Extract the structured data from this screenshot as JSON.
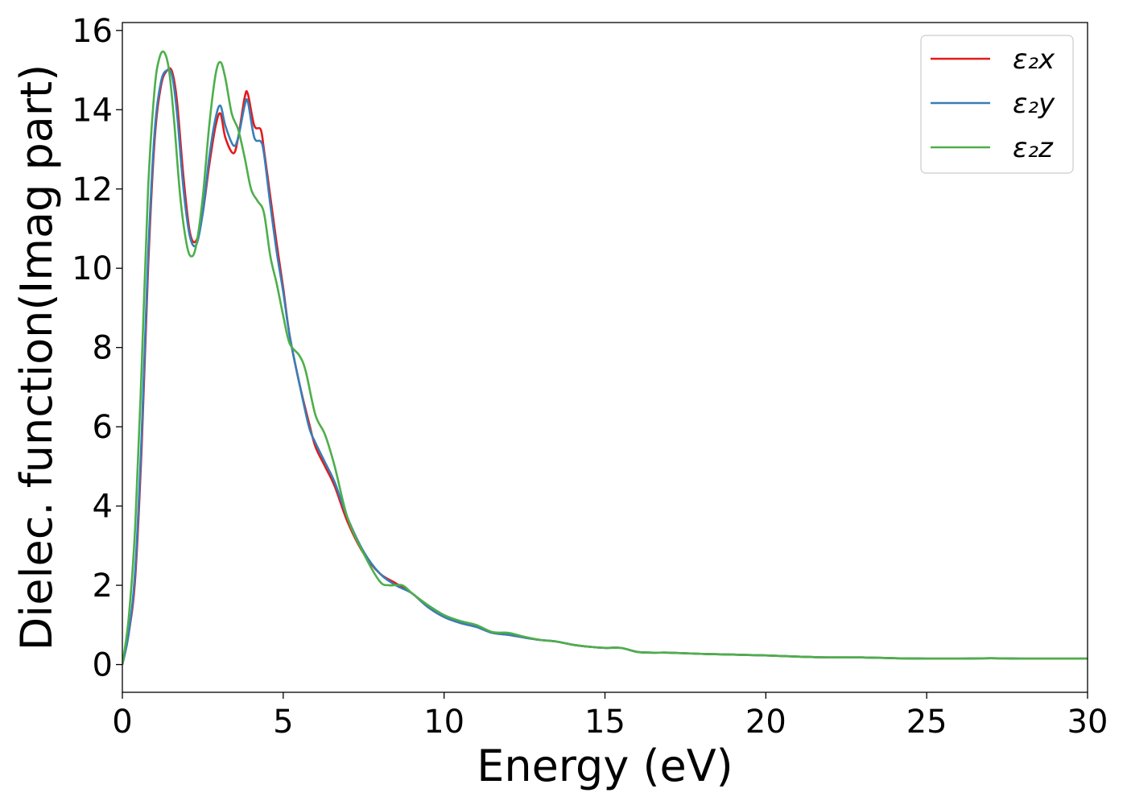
{
  "chart_data": {
    "type": "line",
    "title": "",
    "xlabel": "Energy (eV)",
    "ylabel": "Dielec. function(Imag part)",
    "xlim": [
      0,
      30
    ],
    "ylim": [
      -0.7,
      16.2
    ],
    "xticks": [
      0,
      5,
      10,
      15,
      20,
      25,
      30
    ],
    "yticks": [
      0,
      2,
      4,
      6,
      8,
      10,
      12,
      14,
      16
    ],
    "grid": false,
    "legend": "top-right",
    "series": [
      {
        "name": "ε₂x",
        "color": "#e41a1c",
        "x": [
          0,
          0.2,
          0.4,
          0.6,
          0.8,
          1.0,
          1.2,
          1.4,
          1.55,
          1.7,
          1.9,
          2.1,
          2.3,
          2.5,
          2.7,
          2.9,
          3.05,
          3.2,
          3.45,
          3.6,
          3.8,
          3.9,
          4.1,
          4.3,
          4.4,
          4.6,
          4.8,
          5.0,
          5.2,
          5.5,
          5.8,
          6.0,
          6.3,
          6.6,
          7.0,
          7.5,
          8.0,
          8.5,
          9.0,
          9.5,
          10.0,
          10.5,
          11.0,
          11.5,
          12.0,
          12.5,
          13.0,
          13.5,
          14.0,
          14.5,
          15.0,
          15.5,
          16.0,
          16.5,
          17.0,
          18.0,
          19.0,
          20.0,
          21.0,
          22.0,
          23.0,
          24.0,
          25.0,
          26.0,
          27.0,
          28.0,
          29.0,
          30.0
        ],
        "values": [
          0,
          0.8,
          2.2,
          5.5,
          10.0,
          13.2,
          14.6,
          15.0,
          14.95,
          14.2,
          12.3,
          10.9,
          10.7,
          11.4,
          12.6,
          13.6,
          13.9,
          13.3,
          12.9,
          13.3,
          14.3,
          14.4,
          13.6,
          13.5,
          13.0,
          11.8,
          10.6,
          9.5,
          8.3,
          7.1,
          6.1,
          5.5,
          5.0,
          4.5,
          3.6,
          2.8,
          2.3,
          2.05,
          1.8,
          1.45,
          1.2,
          1.05,
          0.95,
          0.8,
          0.75,
          0.68,
          0.62,
          0.58,
          0.5,
          0.45,
          0.42,
          0.42,
          0.32,
          0.3,
          0.3,
          0.27,
          0.25,
          0.23,
          0.2,
          0.18,
          0.18,
          0.16,
          0.15,
          0.15,
          0.16,
          0.15,
          0.15,
          0.15
        ]
      },
      {
        "name": "ε₂y",
        "color": "#377eb8",
        "x": [
          0,
          0.2,
          0.4,
          0.6,
          0.8,
          1.0,
          1.2,
          1.4,
          1.55,
          1.7,
          1.9,
          2.1,
          2.3,
          2.5,
          2.7,
          2.9,
          3.05,
          3.2,
          3.45,
          3.6,
          3.8,
          3.9,
          4.1,
          4.3,
          4.4,
          4.6,
          4.8,
          5.0,
          5.2,
          5.5,
          5.8,
          6.0,
          6.3,
          6.6,
          7.0,
          7.5,
          8.0,
          8.5,
          9.0,
          9.5,
          10.0,
          10.5,
          11.0,
          11.5,
          12.0,
          12.5,
          13.0,
          13.5,
          14.0,
          14.5,
          15.0,
          15.5,
          16.0,
          16.5,
          17.0,
          18.0,
          19.0,
          20.0,
          21.0,
          22.0,
          23.0,
          24.0,
          25.0,
          26.0,
          27.0,
          28.0,
          29.0,
          30.0
        ],
        "values": [
          0,
          0.8,
          2.4,
          5.8,
          10.3,
          13.4,
          14.7,
          15.0,
          14.85,
          13.9,
          12.0,
          10.8,
          10.6,
          11.4,
          12.8,
          13.8,
          14.1,
          13.6,
          13.1,
          13.3,
          14.1,
          14.2,
          13.3,
          13.2,
          12.9,
          11.6,
          10.4,
          9.4,
          8.3,
          7.1,
          6.0,
          5.6,
          5.1,
          4.6,
          3.7,
          2.85,
          2.3,
          2.0,
          1.8,
          1.45,
          1.2,
          1.05,
          0.95,
          0.8,
          0.75,
          0.68,
          0.62,
          0.58,
          0.5,
          0.45,
          0.42,
          0.42,
          0.32,
          0.3,
          0.3,
          0.27,
          0.25,
          0.23,
          0.2,
          0.18,
          0.18,
          0.16,
          0.15,
          0.15,
          0.16,
          0.15,
          0.15,
          0.15
        ]
      },
      {
        "name": "ε₂z",
        "color": "#4daf4a",
        "x": [
          0,
          0.2,
          0.4,
          0.6,
          0.8,
          1.0,
          1.15,
          1.3,
          1.45,
          1.6,
          1.8,
          2.0,
          2.15,
          2.3,
          2.5,
          2.7,
          2.9,
          3.05,
          3.2,
          3.4,
          3.6,
          3.8,
          4.0,
          4.2,
          4.4,
          4.6,
          4.8,
          5.0,
          5.2,
          5.5,
          5.7,
          6.0,
          6.3,
          6.6,
          7.0,
          7.5,
          8.0,
          8.3,
          8.7,
          9.0,
          9.5,
          10.0,
          10.5,
          11.0,
          11.5,
          12.0,
          12.5,
          13.0,
          13.5,
          14.0,
          14.5,
          15.0,
          15.5,
          16.0,
          16.5,
          17.0,
          18.0,
          19.0,
          20.0,
          21.0,
          22.0,
          23.0,
          24.0,
          25.0,
          26.0,
          27.0,
          28.0,
          29.0,
          30.0
        ],
        "values": [
          0,
          1.2,
          3.5,
          7.5,
          12.0,
          14.5,
          15.3,
          15.45,
          15.0,
          13.8,
          11.8,
          10.6,
          10.3,
          10.6,
          11.8,
          13.6,
          14.9,
          15.2,
          14.8,
          13.9,
          13.5,
          12.8,
          12.0,
          11.7,
          11.4,
          10.3,
          9.6,
          8.8,
          8.1,
          7.8,
          7.4,
          6.3,
          5.8,
          5.0,
          3.7,
          2.8,
          2.1,
          2.0,
          2.0,
          1.8,
          1.5,
          1.25,
          1.1,
          1.0,
          0.82,
          0.8,
          0.7,
          0.62,
          0.58,
          0.5,
          0.45,
          0.42,
          0.42,
          0.32,
          0.3,
          0.3,
          0.27,
          0.25,
          0.23,
          0.2,
          0.18,
          0.18,
          0.16,
          0.15,
          0.15,
          0.16,
          0.15,
          0.15,
          0.15
        ]
      }
    ]
  }
}
